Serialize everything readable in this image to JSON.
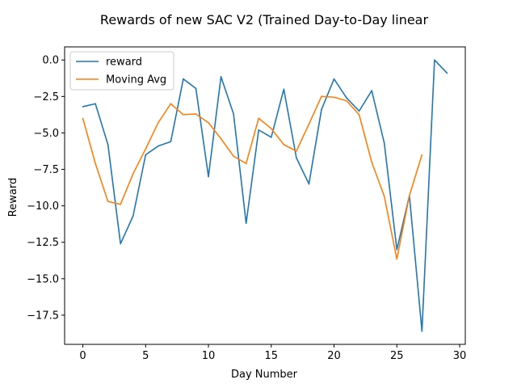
{
  "chart_data": {
    "type": "line",
    "title": "Rewards of new SAC V2 (Trained Day-to-Day linear",
    "xlabel": "Day Number",
    "ylabel": "Reward",
    "xlim": [
      -1.45,
      30.45
    ],
    "ylim": [
      -19.5,
      0.9
    ],
    "xticks": [
      0,
      5,
      10,
      15,
      20,
      25,
      30
    ],
    "xtick_labels": [
      "0",
      "5",
      "10",
      "15",
      "20",
      "25",
      "30"
    ],
    "yticks": [
      0.0,
      -2.5,
      -5.0,
      -7.5,
      -10.0,
      -12.5,
      -15.0,
      -17.5
    ],
    "ytick_labels": [
      "0.0",
      "−2.5",
      "−5.0",
      "−7.5",
      "−10.0",
      "−12.5",
      "−15.0",
      "−17.5"
    ],
    "grid": false,
    "legend_position": "upper-left",
    "series": [
      {
        "name": "reward",
        "color": "#1f77b4",
        "x": [
          0,
          1,
          2,
          3,
          4,
          5,
          6,
          7,
          8,
          9,
          10,
          11,
          12,
          13,
          14,
          15,
          16,
          17,
          18,
          19,
          20,
          21,
          22,
          23,
          24,
          25,
          26,
          27,
          28,
          29
        ],
        "values": [
          -3.2,
          -3.0,
          -5.8,
          -12.6,
          -10.7,
          -6.5,
          -5.9,
          -5.6,
          -1.3,
          -1.95,
          -8.0,
          -1.15,
          -3.7,
          -11.2,
          -4.8,
          -5.3,
          -2.0,
          -6.7,
          -8.5,
          -3.4,
          -1.3,
          -2.6,
          -3.5,
          -2.1,
          -5.7,
          -13.0,
          -9.3,
          -18.6,
          0.0,
          -0.9
        ]
      },
      {
        "name": "Moving Avg",
        "color": "#ff7f0e",
        "x": [
          0,
          1,
          2,
          3,
          4,
          5,
          6,
          7,
          8,
          9,
          10,
          11,
          12,
          13,
          14,
          15,
          16,
          17,
          18,
          19,
          20,
          21,
          22,
          23,
          24,
          25,
          26,
          27
        ],
        "values": [
          -4.0,
          -7.1,
          -9.7,
          -9.9,
          -7.8,
          -6.1,
          -4.3,
          -3.0,
          -3.75,
          -3.7,
          -4.3,
          -5.4,
          -6.6,
          -7.1,
          -4.0,
          -4.7,
          -5.8,
          -6.25,
          -4.4,
          -2.5,
          -2.55,
          -2.8,
          -3.75,
          -7.0,
          -9.35,
          -13.65,
          -9.3,
          -6.5
        ]
      }
    ]
  }
}
